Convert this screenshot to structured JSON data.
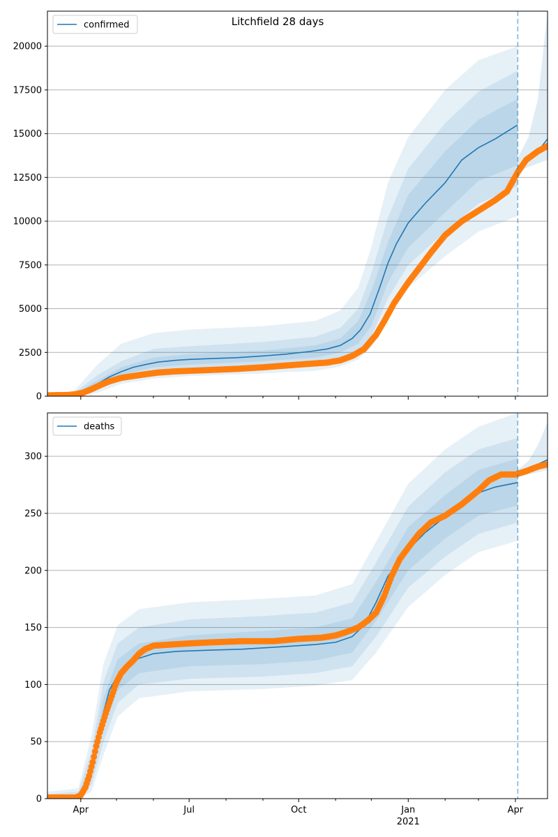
{
  "title": "Litchfield 28 days",
  "colors": {
    "model": "#1f77b4",
    "observed": "#ff7f0e",
    "band": "#1f77b4",
    "grid": "#b0b0b0"
  },
  "x_axis": {
    "tick_labels": [
      "Apr",
      "Jul",
      "Oct",
      "Jan",
      "Apr"
    ],
    "tick_dates": [
      "2020-04-01",
      "2020-07-01",
      "2020-10-01",
      "2021-01-01",
      "2021-04-01"
    ],
    "year_label": "2021",
    "range": [
      "2020-03-04",
      "2021-04-28"
    ],
    "forecast_line_date": "2021-04-03"
  },
  "chart_data": [
    {
      "type": "line",
      "legend": "confirmed",
      "legend_position": "top-left",
      "grid": "y",
      "ylim": [
        0,
        22000
      ],
      "yticks": [
        0,
        2500,
        5000,
        7500,
        10000,
        12500,
        15000,
        17500,
        20000
      ],
      "model": [
        [
          "2020-03-04",
          0
        ],
        [
          "2020-03-25",
          40
        ],
        [
          "2020-04-05",
          300
        ],
        [
          "2020-04-15",
          700
        ],
        [
          "2020-04-25",
          1100
        ],
        [
          "2020-05-05",
          1400
        ],
        [
          "2020-05-15",
          1650
        ],
        [
          "2020-05-25",
          1800
        ],
        [
          "2020-06-05",
          1950
        ],
        [
          "2020-06-20",
          2050
        ],
        [
          "2020-07-01",
          2100
        ],
        [
          "2020-07-20",
          2150
        ],
        [
          "2020-08-10",
          2200
        ],
        [
          "2020-09-01",
          2300
        ],
        [
          "2020-09-20",
          2400
        ],
        [
          "2020-10-10",
          2550
        ],
        [
          "2020-10-25",
          2700
        ],
        [
          "2020-11-05",
          2900
        ],
        [
          "2020-11-15",
          3300
        ],
        [
          "2020-11-22",
          3800
        ],
        [
          "2020-11-30",
          4700
        ],
        [
          "2020-12-08",
          6200
        ],
        [
          "2020-12-15",
          7600
        ],
        [
          "2020-12-22",
          8700
        ],
        [
          "2021-01-01",
          9900
        ],
        [
          "2021-01-15",
          11000
        ],
        [
          "2021-02-01",
          12200
        ],
        [
          "2021-02-15",
          13500
        ],
        [
          "2021-03-01",
          14200
        ],
        [
          "2021-03-15",
          14700
        ],
        [
          "2021-04-03",
          15500
        ]
      ],
      "model_band_inner": [
        [
          "2020-03-04",
          0,
          0
        ],
        [
          "2020-03-25",
          20,
          80
        ],
        [
          "2020-04-15",
          500,
          900
        ],
        [
          "2020-05-05",
          1200,
          1650
        ],
        [
          "2020-06-01",
          1650,
          2200
        ],
        [
          "2020-07-01",
          1800,
          2400
        ],
        [
          "2020-09-01",
          2000,
          2600
        ],
        [
          "2020-10-15",
          2200,
          2900
        ],
        [
          "2020-11-05",
          2500,
          3300
        ],
        [
          "2020-11-20",
          3000,
          4300
        ],
        [
          "2020-12-01",
          4000,
          6000
        ],
        [
          "2020-12-15",
          6500,
          8800
        ],
        [
          "2021-01-01",
          8500,
          11500
        ],
        [
          "2021-02-01",
          10500,
          14000
        ],
        [
          "2021-03-01",
          12300,
          15800
        ],
        [
          "2021-04-03",
          13200,
          17000
        ]
      ],
      "model_band_mid": [
        [
          "2020-03-04",
          0,
          0
        ],
        [
          "2020-03-25",
          10,
          120
        ],
        [
          "2020-04-15",
          350,
          1200
        ],
        [
          "2020-05-05",
          1000,
          2000
        ],
        [
          "2020-06-01",
          1350,
          2700
        ],
        [
          "2020-07-01",
          1500,
          2850
        ],
        [
          "2020-09-01",
          1650,
          3100
        ],
        [
          "2020-10-15",
          1850,
          3400
        ],
        [
          "2020-11-05",
          2100,
          3900
        ],
        [
          "2020-11-20",
          2600,
          5000
        ],
        [
          "2020-12-01",
          3400,
          7000
        ],
        [
          "2020-12-15",
          5600,
          10200
        ],
        [
          "2021-01-01",
          7500,
          13000
        ],
        [
          "2021-02-01",
          9400,
          15600
        ],
        [
          "2021-03-01",
          11000,
          17400
        ],
        [
          "2021-04-03",
          12000,
          18600
        ]
      ],
      "model_band_outer": [
        [
          "2020-03-04",
          0,
          0
        ],
        [
          "2020-03-25",
          0,
          200
        ],
        [
          "2020-04-15",
          200,
          1800
        ],
        [
          "2020-05-05",
          700,
          3000
        ],
        [
          "2020-06-01",
          1000,
          3600
        ],
        [
          "2020-07-01",
          1150,
          3800
        ],
        [
          "2020-09-01",
          1300,
          4000
        ],
        [
          "2020-10-15",
          1450,
          4300
        ],
        [
          "2020-11-05",
          1700,
          4900
        ],
        [
          "2020-11-20",
          2100,
          6200
        ],
        [
          "2020-12-01",
          2800,
          8500
        ],
        [
          "2020-12-15",
          4500,
          12200
        ],
        [
          "2021-01-01",
          6200,
          14800
        ],
        [
          "2021-02-01",
          8000,
          17500
        ],
        [
          "2021-03-01",
          9400,
          19200
        ],
        [
          "2021-04-03",
          10300,
          20000
        ]
      ],
      "post_forecast": [
        [
          "2021-04-03",
          13100
        ],
        [
          "2021-04-10",
          13500
        ],
        [
          "2021-04-20",
          14000
        ],
        [
          "2021-04-28",
          14700
        ]
      ],
      "post_forecast_band": [
        [
          "2021-04-03",
          12800,
          13600
        ],
        [
          "2021-04-12",
          13100,
          14800
        ],
        [
          "2021-04-20",
          13300,
          17000
        ],
        [
          "2021-04-28",
          13500,
          22000
        ]
      ],
      "observed": [
        [
          "2020-03-04",
          50
        ],
        [
          "2020-03-14",
          60
        ],
        [
          "2020-03-22",
          70
        ],
        [
          "2020-03-28",
          120
        ],
        [
          "2020-04-03",
          200
        ],
        [
          "2020-04-10",
          400
        ],
        [
          "2020-04-18",
          650
        ],
        [
          "2020-04-25",
          850
        ],
        [
          "2020-05-05",
          1050
        ],
        [
          "2020-05-15",
          1150
        ],
        [
          "2020-05-25",
          1250
        ],
        [
          "2020-06-05",
          1350
        ],
        [
          "2020-06-20",
          1420
        ],
        [
          "2020-07-01",
          1450
        ],
        [
          "2020-07-20",
          1500
        ],
        [
          "2020-08-10",
          1560
        ],
        [
          "2020-09-01",
          1650
        ],
        [
          "2020-09-20",
          1750
        ],
        [
          "2020-10-10",
          1850
        ],
        [
          "2020-10-25",
          1920
        ],
        [
          "2020-11-05",
          2050
        ],
        [
          "2020-11-15",
          2300
        ],
        [
          "2020-11-25",
          2700
        ],
        [
          "2020-12-05",
          3500
        ],
        [
          "2020-12-12",
          4300
        ],
        [
          "2020-12-20",
          5300
        ],
        [
          "2021-01-01",
          6500
        ],
        [
          "2021-01-10",
          7300
        ],
        [
          "2021-01-20",
          8200
        ],
        [
          "2021-02-01",
          9200
        ],
        [
          "2021-02-15",
          10000
        ],
        [
          "2021-03-01",
          10600
        ],
        [
          "2021-03-15",
          11200
        ],
        [
          "2021-03-25",
          11700
        ],
        [
          "2021-04-03",
          12800
        ],
        [
          "2021-04-10",
          13500
        ],
        [
          "2021-04-20",
          14000
        ],
        [
          "2021-04-28",
          14300
        ]
      ]
    },
    {
      "type": "line",
      "legend": "deaths",
      "legend_position": "top-left",
      "grid": "y",
      "ylim": [
        0,
        338
      ],
      "yticks": [
        0,
        50,
        100,
        150,
        200,
        250,
        300
      ],
      "model": [
        [
          "2020-03-04",
          0
        ],
        [
          "2020-03-30",
          1
        ],
        [
          "2020-04-05",
          8
        ],
        [
          "2020-04-10",
          25
        ],
        [
          "2020-04-15",
          50
        ],
        [
          "2020-04-20",
          75
        ],
        [
          "2020-04-25",
          95
        ],
        [
          "2020-05-02",
          108
        ],
        [
          "2020-05-10",
          117
        ],
        [
          "2020-05-20",
          123
        ],
        [
          "2020-06-01",
          127
        ],
        [
          "2020-06-20",
          129
        ],
        [
          "2020-07-15",
          130
        ],
        [
          "2020-08-15",
          131
        ],
        [
          "2020-09-15",
          133
        ],
        [
          "2020-10-15",
          135
        ],
        [
          "2020-11-01",
          137
        ],
        [
          "2020-11-15",
          142
        ],
        [
          "2020-11-25",
          152
        ],
        [
          "2020-12-05",
          172
        ],
        [
          "2020-12-15",
          195
        ],
        [
          "2021-01-01",
          218
        ],
        [
          "2021-01-15",
          233
        ],
        [
          "2021-02-01",
          247
        ],
        [
          "2021-02-15",
          260
        ],
        [
          "2021-03-01",
          268
        ],
        [
          "2021-03-15",
          273
        ],
        [
          "2021-04-03",
          277
        ]
      ],
      "model_band_inner": [
        [
          "2020-03-04",
          0,
          2
        ],
        [
          "2020-03-30",
          0,
          3
        ],
        [
          "2020-04-10",
          18,
          32
        ],
        [
          "2020-04-20",
          62,
          88
        ],
        [
          "2020-05-02",
          95,
          122
        ],
        [
          "2020-05-20",
          110,
          136
        ],
        [
          "2020-07-01",
          116,
          143
        ],
        [
          "2020-09-01",
          118,
          147
        ],
        [
          "2020-10-15",
          121,
          150
        ],
        [
          "2020-11-15",
          128,
          158
        ],
        [
          "2020-12-05",
          156,
          190
        ],
        [
          "2021-01-01",
          200,
          238
        ],
        [
          "2021-02-01",
          228,
          266
        ],
        [
          "2021-03-01",
          248,
          288
        ],
        [
          "2021-04-03",
          257,
          298
        ]
      ],
      "model_band_mid": [
        [
          "2020-03-04",
          0,
          4
        ],
        [
          "2020-03-30",
          0,
          6
        ],
        [
          "2020-04-10",
          12,
          42
        ],
        [
          "2020-04-20",
          50,
          102
        ],
        [
          "2020-05-02",
          84,
          136
        ],
        [
          "2020-05-20",
          100,
          150
        ],
        [
          "2020-07-01",
          105,
          157
        ],
        [
          "2020-09-01",
          107,
          160
        ],
        [
          "2020-10-15",
          110,
          163
        ],
        [
          "2020-11-15",
          116,
          172
        ],
        [
          "2020-12-05",
          142,
          207
        ],
        [
          "2021-01-01",
          185,
          256
        ],
        [
          "2021-02-01",
          212,
          286
        ],
        [
          "2021-03-01",
          232,
          306
        ],
        [
          "2021-04-03",
          242,
          316
        ]
      ],
      "model_band_outer": [
        [
          "2020-03-04",
          0,
          6
        ],
        [
          "2020-03-30",
          0,
          9
        ],
        [
          "2020-04-10",
          6,
          55
        ],
        [
          "2020-04-20",
          38,
          118
        ],
        [
          "2020-05-02",
          72,
          152
        ],
        [
          "2020-05-20",
          88,
          166
        ],
        [
          "2020-07-01",
          94,
          172
        ],
        [
          "2020-09-01",
          96,
          175
        ],
        [
          "2020-10-15",
          99,
          178
        ],
        [
          "2020-11-15",
          104,
          188
        ],
        [
          "2020-12-05",
          128,
          225
        ],
        [
          "2021-01-01",
          168,
          276
        ],
        [
          "2021-02-01",
          196,
          306
        ],
        [
          "2021-03-01",
          216,
          326
        ],
        [
          "2021-04-03",
          226,
          338
        ]
      ],
      "post_forecast": [
        [
          "2021-04-03",
          284
        ],
        [
          "2021-04-12",
          288
        ],
        [
          "2021-04-20",
          293
        ],
        [
          "2021-04-28",
          297
        ]
      ],
      "post_forecast_band": [
        [
          "2021-04-03",
          282,
          288
        ],
        [
          "2021-04-12",
          284,
          296
        ],
        [
          "2021-04-20",
          286,
          310
        ],
        [
          "2021-04-28",
          288,
          330
        ]
      ],
      "observed": [
        [
          "2020-03-04",
          1
        ],
        [
          "2020-03-15",
          1
        ],
        [
          "2020-03-28",
          1
        ],
        [
          "2020-04-01",
          3
        ],
        [
          "2020-04-05",
          10
        ],
        [
          "2020-04-08",
          20
        ],
        [
          "2020-04-11",
          32
        ],
        [
          "2020-04-14",
          46
        ],
        [
          "2020-04-17",
          58
        ],
        [
          "2020-04-20",
          68
        ],
        [
          "2020-04-23",
          78
        ],
        [
          "2020-04-27",
          90
        ],
        [
          "2020-05-01",
          102
        ],
        [
          "2020-05-05",
          110
        ],
        [
          "2020-05-10",
          116
        ],
        [
          "2020-05-15",
          121
        ],
        [
          "2020-05-20",
          127
        ],
        [
          "2020-05-25",
          131
        ],
        [
          "2020-06-01",
          134
        ],
        [
          "2020-06-15",
          135
        ],
        [
          "2020-07-01",
          136
        ],
        [
          "2020-07-20",
          137
        ],
        [
          "2020-08-15",
          138
        ],
        [
          "2020-09-10",
          138
        ],
        [
          "2020-10-01",
          140
        ],
        [
          "2020-10-20",
          141
        ],
        [
          "2020-11-01",
          143
        ],
        [
          "2020-11-10",
          146
        ],
        [
          "2020-11-20",
          150
        ],
        [
          "2020-11-28",
          156
        ],
        [
          "2020-12-05",
          163
        ],
        [
          "2020-12-12",
          178
        ],
        [
          "2020-12-18",
          195
        ],
        [
          "2020-12-25",
          210
        ],
        [
          "2021-01-01",
          220
        ],
        [
          "2021-01-10",
          232
        ],
        [
          "2021-01-20",
          242
        ],
        [
          "2021-02-01",
          248
        ],
        [
          "2021-02-15",
          258
        ],
        [
          "2021-03-01",
          270
        ],
        [
          "2021-03-10",
          279
        ],
        [
          "2021-03-20",
          284
        ],
        [
          "2021-04-01",
          284
        ],
        [
          "2021-04-10",
          287
        ],
        [
          "2021-04-20",
          291
        ],
        [
          "2021-04-28",
          293
        ]
      ]
    }
  ]
}
